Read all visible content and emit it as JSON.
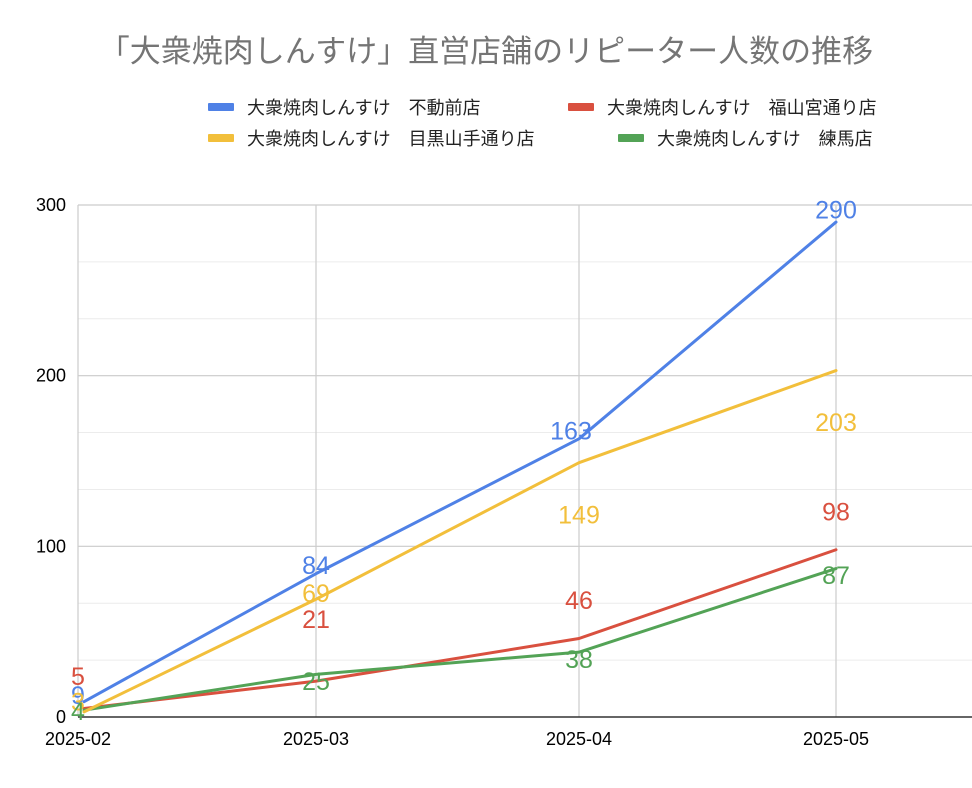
{
  "chart_data": {
    "type": "line",
    "title": "「大衆焼肉しんすけ」直営店舗のリピーター人数の推移",
    "categories": [
      "2025-02",
      "2025-03",
      "2025-04",
      "2025-05"
    ],
    "ylim": [
      0,
      300
    ],
    "yticks": [
      0,
      100,
      200,
      300
    ],
    "grid": true,
    "legend_position": "top",
    "series": [
      {
        "name": "大衆焼肉しんすけ　不動前店",
        "color": "#4f81e6",
        "values": [
          9,
          84,
          163,
          290
        ]
      },
      {
        "name": "大衆焼肉しんすけ　福山宮通り店",
        "color": "#d9503f",
        "values": [
          5,
          21,
          46,
          98
        ]
      },
      {
        "name": "大衆焼肉しんすけ　目黒山手通り店",
        "color": "#f2bf3b",
        "values": [
          3,
          69,
          149,
          203
        ]
      },
      {
        "name": "大衆焼肉しんすけ　練馬店",
        "color": "#53a356",
        "values": [
          4,
          25,
          38,
          87
        ]
      }
    ]
  }
}
